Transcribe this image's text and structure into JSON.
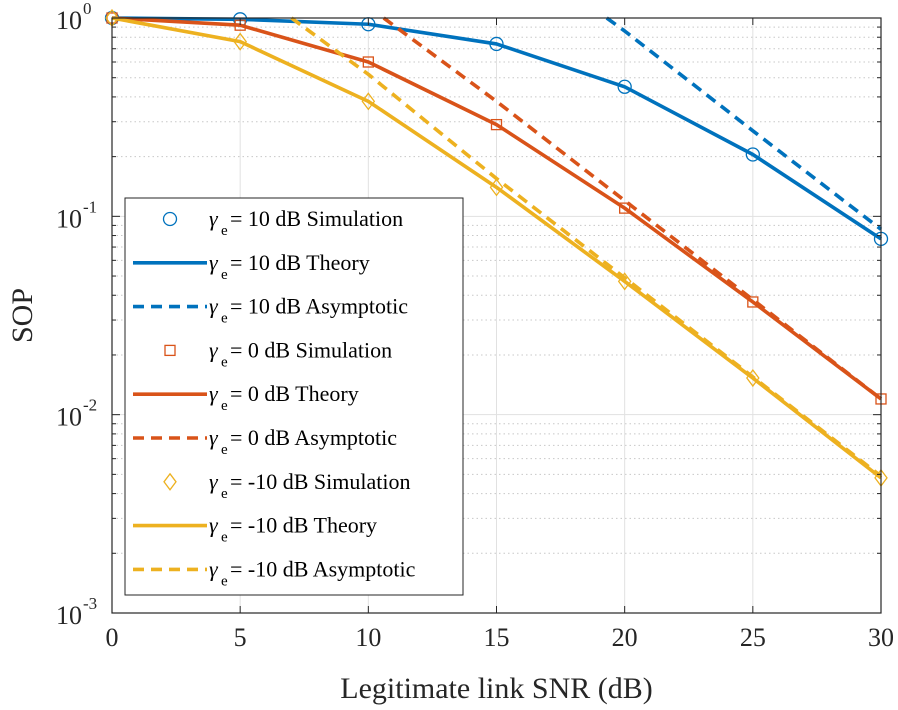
{
  "chart_data": {
    "type": "line",
    "y_scale": "log",
    "xlabel": "Legitimate link SNR (dB)",
    "ylabel": "SOP",
    "xlim": [
      0,
      30
    ],
    "ylim": [
      0.001,
      1
    ],
    "x_ticks": [
      0,
      5,
      10,
      15,
      20,
      25,
      30
    ],
    "y_ticks": [
      {
        "value": 1,
        "base": "10",
        "exp": "0"
      },
      {
        "value": 0.1,
        "base": "10",
        "exp": "-1"
      },
      {
        "value": 0.01,
        "base": "10",
        "exp": "-2"
      },
      {
        "value": 0.001,
        "base": "10",
        "exp": "-3"
      }
    ],
    "grid": true,
    "legend_position": "bottom-left",
    "legend_symbol": "γ",
    "legend_subscript": "e",
    "series": [
      {
        "name": "γe= 10 dB Simulation",
        "legend_label": "= 10 dB Simulation",
        "kind": "marker",
        "marker": "circle",
        "color": "#0072BD",
        "x": [
          0,
          5,
          10,
          15,
          20,
          25,
          30
        ],
        "y": [
          1.0,
          0.985,
          0.93,
          0.74,
          0.45,
          0.205,
          0.077
        ]
      },
      {
        "name": "γe= 10 dB Theory",
        "legend_label": "= 10 dB Theory",
        "kind": "solid",
        "color": "#0072BD",
        "x": [
          0,
          5,
          10,
          15,
          20,
          25,
          30
        ],
        "y": [
          1.0,
          0.985,
          0.93,
          0.74,
          0.45,
          0.205,
          0.077
        ]
      },
      {
        "name": "γe= 10 dB Asymptotic",
        "legend_label": "= 10 dB Asymptotic",
        "kind": "dashed",
        "color": "#0072BD",
        "x": [
          19.3,
          20,
          25,
          30
        ],
        "y": [
          1.0,
          0.86,
          0.27,
          0.086
        ]
      },
      {
        "name": "γe= 0 dB Simulation",
        "legend_label": "= 0 dB Simulation",
        "kind": "marker",
        "marker": "square",
        "color": "#D95319",
        "x": [
          0,
          5,
          10,
          15,
          20,
          25,
          30
        ],
        "y": [
          1.0,
          0.92,
          0.6,
          0.29,
          0.11,
          0.037,
          0.012
        ]
      },
      {
        "name": "γe= 0 dB Theory",
        "legend_label": "= 0 dB Theory",
        "kind": "solid",
        "color": "#D95319",
        "x": [
          0,
          5,
          10,
          15,
          20,
          25,
          30
        ],
        "y": [
          1.0,
          0.92,
          0.6,
          0.29,
          0.11,
          0.037,
          0.012
        ]
      },
      {
        "name": "γe= 0 dB Asymptotic",
        "legend_label": "= 0 dB Asymptotic",
        "kind": "dashed",
        "color": "#D95319",
        "x": [
          10.6,
          15,
          20,
          25,
          30
        ],
        "y": [
          1.0,
          0.38,
          0.12,
          0.038,
          0.012
        ]
      },
      {
        "name": "γe= -10 dB Simulation",
        "legend_label": "= -10 dB Simulation",
        "kind": "marker",
        "marker": "diamond",
        "color": "#EDB120",
        "x": [
          0,
          5,
          10,
          15,
          20,
          25,
          30
        ],
        "y": [
          1.0,
          0.76,
          0.38,
          0.14,
          0.047,
          0.0153,
          0.0048
        ]
      },
      {
        "name": "γe= -10 dB Theory",
        "legend_label": "= -10 dB Theory",
        "kind": "solid",
        "color": "#EDB120",
        "x": [
          0,
          5,
          10,
          15,
          20,
          25,
          30
        ],
        "y": [
          1.0,
          0.76,
          0.38,
          0.14,
          0.047,
          0.0153,
          0.0048
        ]
      },
      {
        "name": "γe= -10 dB Asymptotic",
        "legend_label": "= -10 dB Asymptotic",
        "kind": "dashed",
        "color": "#EDB120",
        "x": [
          7.0,
          10,
          15,
          20,
          25,
          30
        ],
        "y": [
          1.0,
          0.52,
          0.155,
          0.049,
          0.0155,
          0.0049
        ]
      }
    ]
  }
}
